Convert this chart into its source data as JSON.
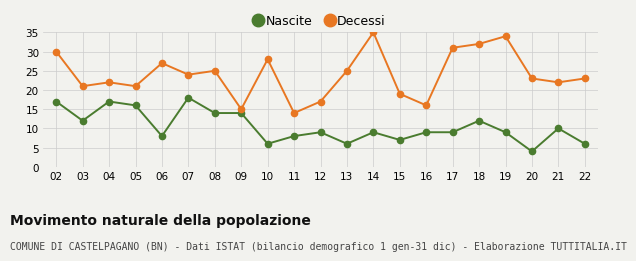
{
  "years": [
    "02",
    "03",
    "04",
    "05",
    "06",
    "07",
    "08",
    "09",
    "10",
    "11",
    "12",
    "13",
    "14",
    "15",
    "16",
    "17",
    "18",
    "19",
    "20",
    "21",
    "22"
  ],
  "nascite": [
    17,
    12,
    17,
    16,
    8,
    18,
    14,
    14,
    6,
    8,
    9,
    6,
    9,
    7,
    9,
    9,
    12,
    9,
    4,
    10,
    6
  ],
  "decessi": [
    30,
    21,
    22,
    21,
    27,
    24,
    25,
    15,
    28,
    14,
    17,
    25,
    35,
    19,
    16,
    31,
    32,
    34,
    23,
    22,
    23
  ],
  "nascite_color": "#4a7c2f",
  "decessi_color": "#e87722",
  "background_color": "#f2f2ee",
  "grid_color": "#cccccc",
  "ylim": [
    0,
    35
  ],
  "yticks": [
    0,
    5,
    10,
    15,
    20,
    25,
    30,
    35
  ],
  "title": "Movimento naturale della popolazione",
  "subtitle": "COMUNE DI CASTELPAGANO (BN) - Dati ISTAT (bilancio demografico 1 gen-31 dic) - Elaborazione TUTTITALIA.IT",
  "legend_nascite": "Nascite",
  "legend_decessi": "Decessi",
  "title_fontsize": 10,
  "subtitle_fontsize": 7,
  "tick_fontsize": 7.5,
  "marker_size": 4.5,
  "linewidth": 1.4
}
